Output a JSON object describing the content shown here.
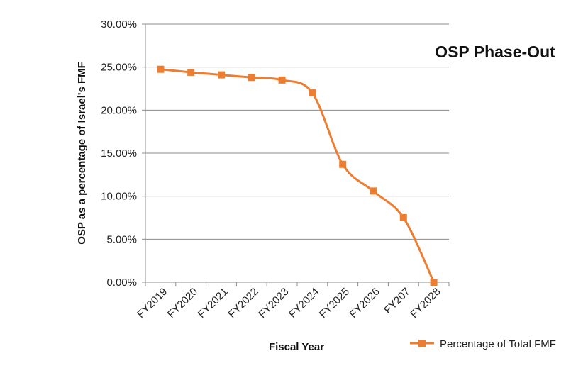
{
  "chart_data": {
    "type": "line",
    "title": "OSP Phase-Out",
    "xlabel": "Fiscal Year",
    "ylabel": "OSP as a percentage of Israel's FMF",
    "categories": [
      "FY2019",
      "FY2020",
      "FY2021",
      "FY2022",
      "FY2023",
      "FY2024",
      "FY2025",
      "FY2026",
      "FY207",
      "FY2028"
    ],
    "series": [
      {
        "name": "Percentage of Total FMF",
        "color": "#ED7D31",
        "marker": "square",
        "values": [
          24.75,
          24.4,
          24.1,
          23.8,
          23.5,
          22.0,
          13.7,
          10.6,
          7.5,
          0.0
        ]
      }
    ],
    "ylim": [
      0,
      30
    ],
    "yticks": [
      0,
      5,
      10,
      15,
      20,
      25,
      30
    ],
    "ytick_labels": [
      "0.00%",
      "5.00%",
      "10.00%",
      "15.00%",
      "20.00%",
      "25.00%",
      "30.00%"
    ],
    "grid": true,
    "legend_position": "bottom-right"
  }
}
